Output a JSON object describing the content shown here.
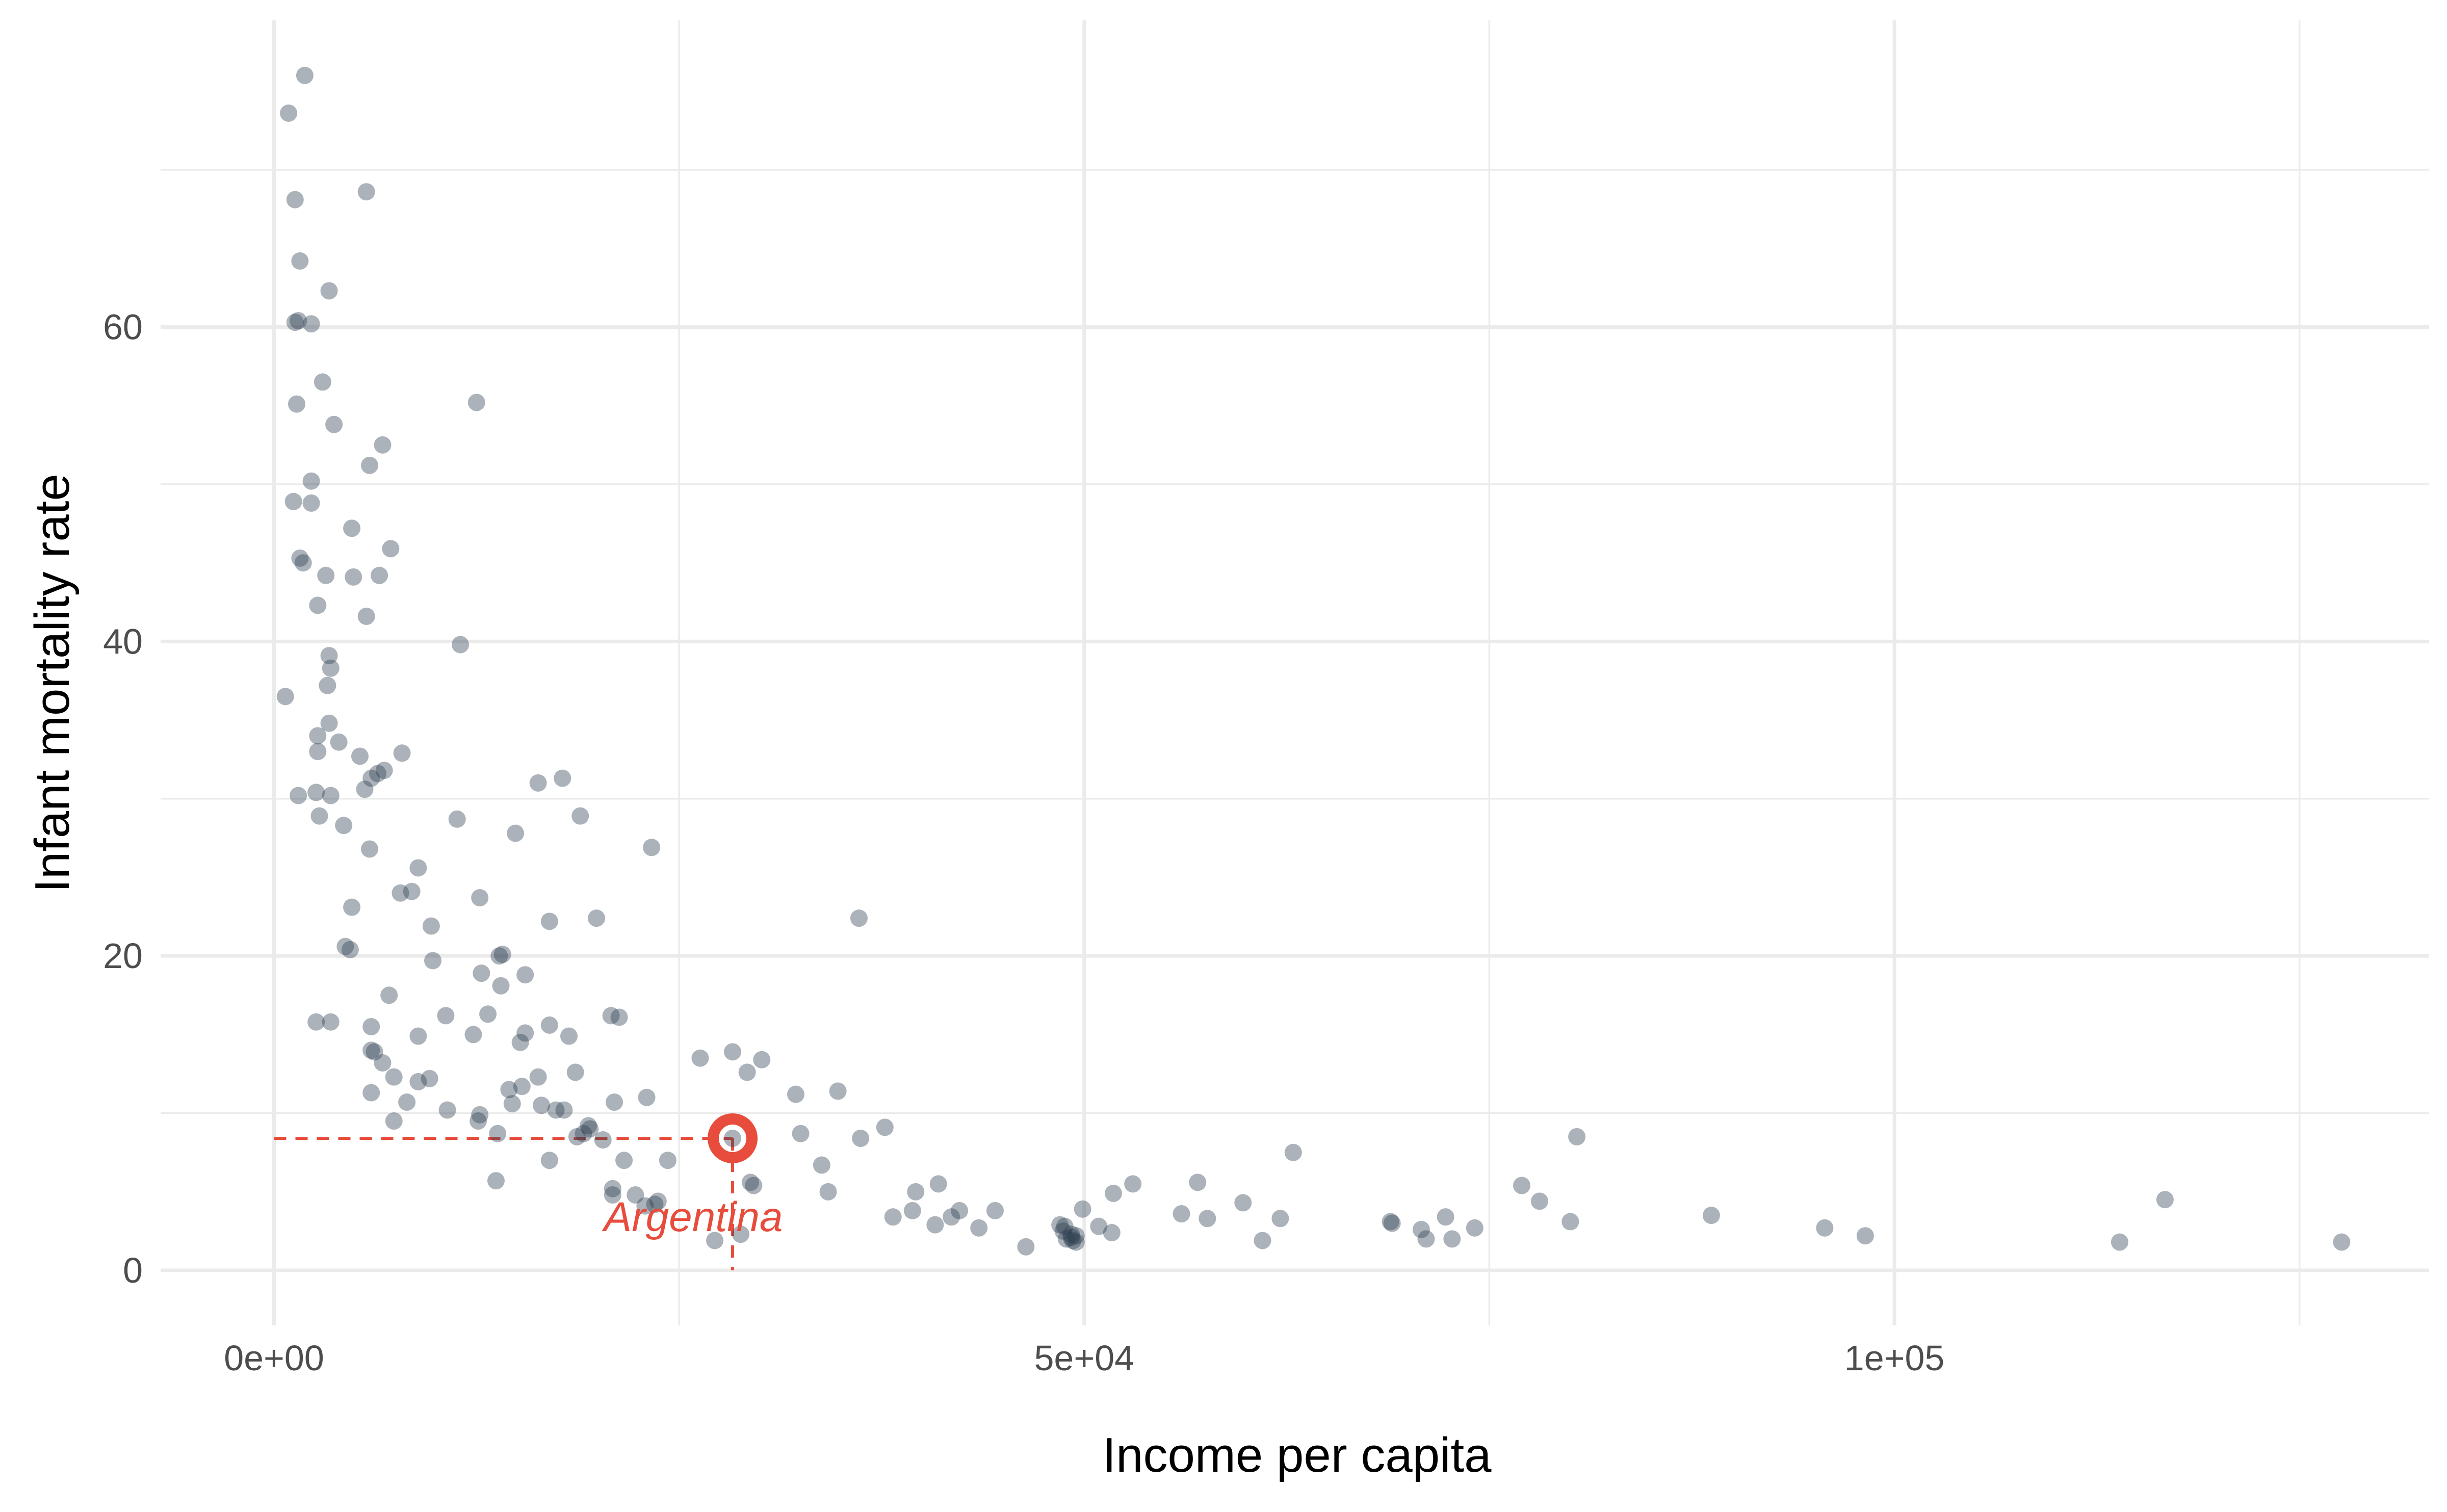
{
  "chart_data": {
    "type": "scatter",
    "xlabel": "Income per capita",
    "ylabel": "Infant mortality rate",
    "xlim": [
      -7000,
      133000
    ],
    "ylim": [
      -3.5,
      79.5
    ],
    "x_ticks": [
      {
        "value": 0,
        "label": "0e+00"
      },
      {
        "value": 50000,
        "label": "5e+04"
      },
      {
        "value": 100000,
        "label": "1e+05"
      }
    ],
    "x_minor_ticks": [
      25000,
      75000,
      125000
    ],
    "y_ticks": [
      {
        "value": 0,
        "label": "0"
      },
      {
        "value": 20,
        "label": "20"
      },
      {
        "value": 40,
        "label": "40"
      },
      {
        "value": 60,
        "label": "60"
      }
    ],
    "y_minor_ticks": [
      10,
      30,
      50,
      70
    ],
    "grid": true,
    "legend": "none",
    "point_color": "#2C3E50",
    "highlight_color": "#E74C3C",
    "highlight": {
      "x": 28300,
      "y": 8.4,
      "label": "Argentina"
    },
    "points": [
      [
        1900,
        76.0
      ],
      [
        900,
        73.6
      ],
      [
        1300,
        68.1
      ],
      [
        5700,
        68.6
      ],
      [
        1600,
        64.2
      ],
      [
        3400,
        62.3
      ],
      [
        1300,
        60.3
      ],
      [
        1500,
        60.4
      ],
      [
        2300,
        60.2
      ],
      [
        3000,
        56.5
      ],
      [
        1400,
        55.1
      ],
      [
        12500,
        55.2
      ],
      [
        3700,
        53.8
      ],
      [
        6700,
        52.5
      ],
      [
        5900,
        51.2
      ],
      [
        2300,
        50.2
      ],
      [
        1200,
        48.9
      ],
      [
        2300,
        48.8
      ],
      [
        4800,
        47.2
      ],
      [
        7200,
        45.9
      ],
      [
        1600,
        45.3
      ],
      [
        1800,
        45.0
      ],
      [
        3200,
        44.2
      ],
      [
        4900,
        44.1
      ],
      [
        6500,
        44.2
      ],
      [
        2700,
        42.3
      ],
      [
        5700,
        41.6
      ],
      [
        11500,
        39.8
      ],
      [
        3400,
        39.1
      ],
      [
        3500,
        38.3
      ],
      [
        700,
        36.5
      ],
      [
        3300,
        37.2
      ],
      [
        3400,
        34.8
      ],
      [
        2700,
        34.0
      ],
      [
        4000,
        33.6
      ],
      [
        2700,
        33.0
      ],
      [
        5300,
        32.7
      ],
      [
        7900,
        32.9
      ],
      [
        6800,
        31.8
      ],
      [
        6400,
        31.6
      ],
      [
        6000,
        31.3
      ],
      [
        16300,
        31.0
      ],
      [
        17800,
        31.3
      ],
      [
        5600,
        30.6
      ],
      [
        1500,
        30.2
      ],
      [
        2600,
        30.4
      ],
      [
        3500,
        30.2
      ],
      [
        2800,
        28.9
      ],
      [
        4300,
        28.3
      ],
      [
        11300,
        28.7
      ],
      [
        18900,
        28.9
      ],
      [
        14900,
        27.8
      ],
      [
        5900,
        26.8
      ],
      [
        23300,
        26.9
      ],
      [
        8900,
        25.6
      ],
      [
        8500,
        24.1
      ],
      [
        7800,
        24.0
      ],
      [
        12700,
        23.7
      ],
      [
        4800,
        23.1
      ],
      [
        36100,
        22.4
      ],
      [
        17000,
        22.2
      ],
      [
        19900,
        22.4
      ],
      [
        9700,
        21.9
      ],
      [
        4400,
        20.6
      ],
      [
        4700,
        20.4
      ],
      [
        14100,
        20.1
      ],
      [
        13900,
        20.0
      ],
      [
        9800,
        19.7
      ],
      [
        12800,
        18.9
      ],
      [
        15500,
        18.8
      ],
      [
        14000,
        18.1
      ],
      [
        7100,
        17.5
      ],
      [
        20800,
        16.2
      ],
      [
        21300,
        16.1
      ],
      [
        10600,
        16.2
      ],
      [
        13200,
        16.3
      ],
      [
        2600,
        15.8
      ],
      [
        3500,
        15.8
      ],
      [
        6000,
        15.5
      ],
      [
        17000,
        15.6
      ],
      [
        15500,
        15.1
      ],
      [
        18200,
        14.9
      ],
      [
        12300,
        15.0
      ],
      [
        8900,
        14.9
      ],
      [
        15200,
        14.5
      ],
      [
        6000,
        14.0
      ],
      [
        6200,
        13.9
      ],
      [
        6700,
        13.2
      ],
      [
        28300,
        13.9
      ],
      [
        26300,
        13.5
      ],
      [
        30100,
        13.4
      ],
      [
        29200,
        12.6
      ],
      [
        7400,
        12.3
      ],
      [
        8900,
        12.0
      ],
      [
        9600,
        12.2
      ],
      [
        16300,
        12.3
      ],
      [
        18600,
        12.6
      ],
      [
        14500,
        11.5
      ],
      [
        15300,
        11.7
      ],
      [
        34800,
        11.4
      ],
      [
        32200,
        11.2
      ],
      [
        6000,
        11.3
      ],
      [
        23000,
        11.0
      ],
      [
        8200,
        10.7
      ],
      [
        16500,
        10.5
      ],
      [
        17400,
        10.2
      ],
      [
        17900,
        10.2
      ],
      [
        21000,
        10.7
      ],
      [
        10700,
        10.2
      ],
      [
        14700,
        10.6
      ],
      [
        12700,
        9.9
      ],
      [
        12600,
        9.5
      ],
      [
        7400,
        9.5
      ],
      [
        19400,
        9.2
      ],
      [
        19500,
        9.0
      ],
      [
        19100,
        8.7
      ],
      [
        18700,
        8.5
      ],
      [
        20300,
        8.3
      ],
      [
        13800,
        8.7
      ],
      [
        37700,
        9.1
      ],
      [
        32500,
        8.7
      ],
      [
        36200,
        8.4
      ],
      [
        28300,
        8.4
      ],
      [
        62900,
        7.5
      ],
      [
        17000,
        7.0
      ],
      [
        21600,
        7.0
      ],
      [
        24300,
        7.0
      ],
      [
        33800,
        6.7
      ],
      [
        13700,
        5.7
      ],
      [
        29400,
        5.6
      ],
      [
        29600,
        5.4
      ],
      [
        41000,
        5.5
      ],
      [
        53000,
        5.5
      ],
      [
        57000,
        5.6
      ],
      [
        77000,
        5.4
      ],
      [
        80400,
        8.5
      ],
      [
        20900,
        5.2
      ],
      [
        20900,
        4.8
      ],
      [
        22300,
        4.8
      ],
      [
        23700,
        4.4
      ],
      [
        22900,
        4.1
      ],
      [
        23500,
        4.2
      ],
      [
        34200,
        5.0
      ],
      [
        39600,
        5.0
      ],
      [
        51800,
        4.9
      ],
      [
        59800,
        4.3
      ],
      [
        78100,
        4.4
      ],
      [
        116700,
        4.5
      ],
      [
        39400,
        3.8
      ],
      [
        42300,
        3.8
      ],
      [
        44500,
        3.8
      ],
      [
        49900,
        3.9
      ],
      [
        56000,
        3.6
      ],
      [
        57600,
        3.3
      ],
      [
        62100,
        3.3
      ],
      [
        72300,
        3.4
      ],
      [
        80000,
        3.1
      ],
      [
        88700,
        3.5
      ],
      [
        38200,
        3.4
      ],
      [
        41800,
        3.4
      ],
      [
        40800,
        2.9
      ],
      [
        43500,
        2.7
      ],
      [
        48500,
        2.9
      ],
      [
        48700,
        2.5
      ],
      [
        48800,
        2.8
      ],
      [
        49200,
        2.3
      ],
      [
        49500,
        2.2
      ],
      [
        50900,
        2.8
      ],
      [
        51700,
        2.4
      ],
      [
        68900,
        3.1
      ],
      [
        69000,
        3.0
      ],
      [
        70800,
        2.6
      ],
      [
        71100,
        2.0
      ],
      [
        74100,
        2.7
      ],
      [
        95700,
        2.7
      ],
      [
        28800,
        2.3
      ],
      [
        48900,
        2.0
      ],
      [
        49200,
        2.1
      ],
      [
        49300,
        1.9
      ],
      [
        49500,
        1.8
      ],
      [
        61000,
        1.9
      ],
      [
        72700,
        2.0
      ],
      [
        98200,
        2.2
      ],
      [
        46400,
        1.5
      ],
      [
        113900,
        1.8
      ],
      [
        127600,
        1.8
      ],
      [
        27200,
        1.9
      ]
    ]
  }
}
